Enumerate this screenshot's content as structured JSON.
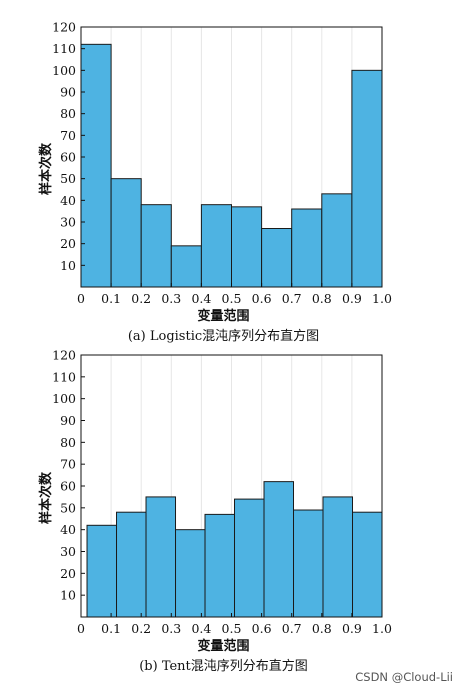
{
  "chart_data": [
    {
      "type": "bar",
      "caption": "(a) Logistic混沌序列分布直方图",
      "xlabel": "变量范围",
      "ylabel": "样本次数",
      "bin_edges": [
        0,
        0.1,
        0.2,
        0.3,
        0.4,
        0.5,
        0.6,
        0.7,
        0.8,
        0.9,
        1.0
      ],
      "xticks": [
        "0",
        "0.1",
        "0.2",
        "0.3",
        "0.4",
        "0.5",
        "0.6",
        "0.7",
        "0.8",
        "0.9",
        "1.0"
      ],
      "values": [
        112,
        50,
        38,
        19,
        38,
        37,
        27,
        36,
        43,
        100
      ],
      "ylim": [
        0,
        120
      ],
      "yticks": [
        "10",
        "20",
        "30",
        "40",
        "50",
        "60",
        "70",
        "80",
        "90",
        "100",
        "110",
        "120"
      ],
      "color": "#4eb3e2",
      "grid": "vertical"
    },
    {
      "type": "bar",
      "caption": "(b) Tent混沌序列分布直方图",
      "xlabel": "变量范围",
      "ylabel": "样本次数",
      "bin_edges": [
        0.02,
        0.118,
        0.216,
        0.314,
        0.412,
        0.51,
        0.608,
        0.706,
        0.804,
        0.902,
        1.0
      ],
      "xticks": [
        "0",
        "0.1",
        "0.2",
        "0.3",
        "0.4",
        "0.5",
        "0.6",
        "0.7",
        "0.8",
        "0.9",
        "1.0"
      ],
      "values": [
        42,
        48,
        55,
        40,
        47,
        54,
        62,
        49,
        55,
        48
      ],
      "ylim": [
        0,
        120
      ],
      "yticks": [
        "10",
        "20",
        "30",
        "40",
        "50",
        "60",
        "70",
        "80",
        "90",
        "100",
        "110",
        "120"
      ],
      "color": "#4eb3e2",
      "grid": "vertical"
    }
  ],
  "watermark": "CSDN @Cloud-Lii"
}
